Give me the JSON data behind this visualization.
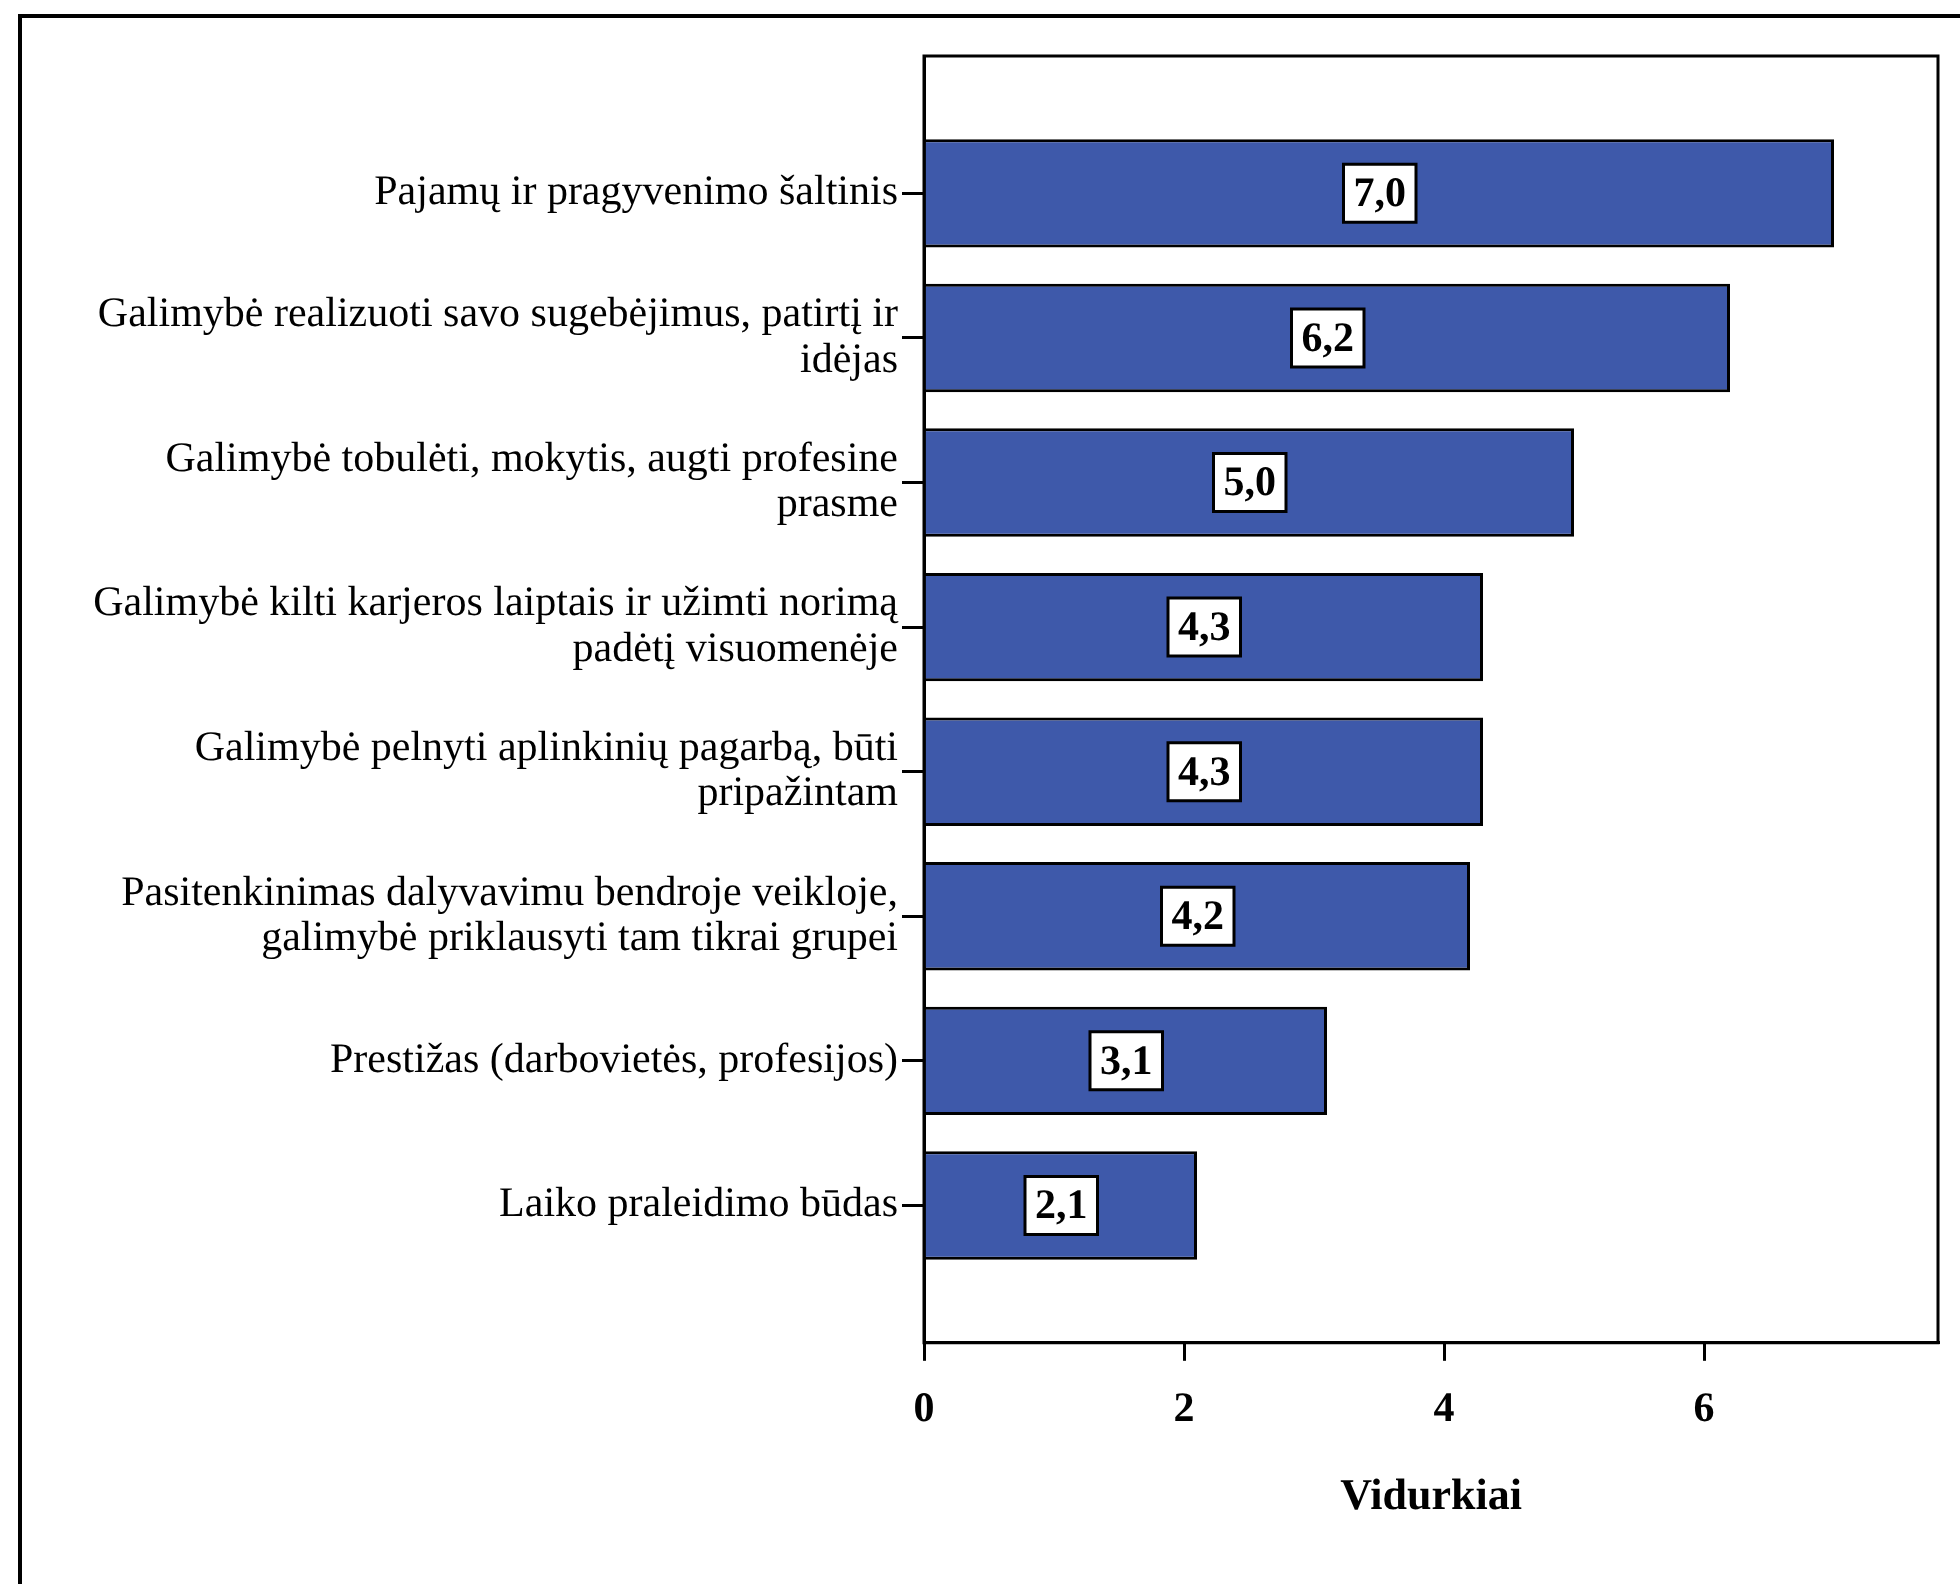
{
  "chart_data": {
    "type": "bar",
    "orientation": "horizontal",
    "xlabel": "Vidurkiai",
    "categories": [
      "Pajamų ir pragyvenimo šaltinis",
      "Galimybė realizuoti savo sugebėjimus, patirtį ir idėjas",
      "Galimybė tobulėti, mokytis, augti profesine prasme",
      "Galimybė kilti karjeros laiptais ir užimti norimą padėtį visuomenėje",
      "Galimybė pelnyti aplinkinių pagarbą, būti pripažintam",
      "Pasitenkinimas dalyvavimu bendroje veikloje, galimybė priklausyti tam tikrai grupei",
      "Prestižas (darbovietės, profesijos)",
      "Laiko praleidimo būdas"
    ],
    "values": [
      7,
      6.2,
      5,
      4.3,
      4.3,
      4.2,
      3.1,
      2.1
    ],
    "value_labels": [
      "7,0",
      "6,2",
      "5,0",
      "4,3",
      "4,3",
      "4,2",
      "3,1",
      "2,1"
    ],
    "color": "#3e59aa",
    "xlim": [
      0,
      7.8
    ],
    "xticks": [
      0,
      2,
      4,
      6
    ]
  }
}
